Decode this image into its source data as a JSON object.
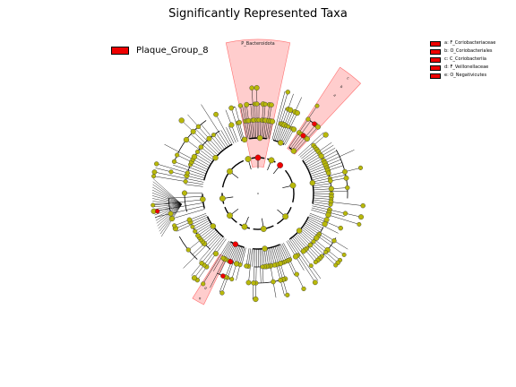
{
  "title": "Significantly Represented Taxa",
  "colors": {
    "background": "#ffffff",
    "node_default": "#b8b80a",
    "node_significant": "#ee0000",
    "highlight_fill": "#ff9c9c",
    "edge": "#000000"
  },
  "group_legend": {
    "label": "Plaque_Group_8",
    "color": "#ee0000"
  },
  "taxa_legend": [
    {
      "key": "a",
      "label": "a: F_Coriobacteriaceae"
    },
    {
      "key": "b",
      "label": "b: O_Coriobacteriales"
    },
    {
      "key": "c",
      "label": "c: C_Coriobacteriia"
    },
    {
      "key": "d",
      "label": "d: F_Veillonellaceae"
    },
    {
      "key": "e",
      "label": "e: O_Negativicutes"
    }
  ],
  "clade_labels": {
    "bacteroidota": "P_Bacteroidota",
    "c": "c",
    "b": "b",
    "a": "a",
    "e": "e",
    "d": "d"
  },
  "cladogram": {
    "levels": 6,
    "highlighted_clades": [
      "P_Bacteroidota",
      "c",
      "e"
    ],
    "significant_nodes": [
      "P_Bacteroidota",
      "a",
      "b",
      "c",
      "d",
      "e"
    ]
  }
}
